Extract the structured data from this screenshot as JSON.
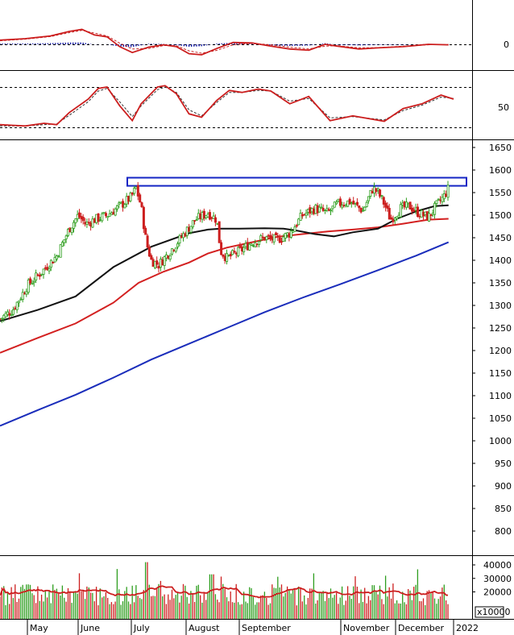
{
  "chart_data": {
    "type": "candlestick",
    "months": [
      "May",
      "June",
      "July",
      "August",
      "September",
      "November",
      "December",
      "2022"
    ],
    "price_axis": {
      "ticks": [
        "1650",
        "1600",
        "1550",
        "1500",
        "1450",
        "1400",
        "1350",
        "1300",
        "1250",
        "1200",
        "1150",
        "1100",
        "1050",
        "1000",
        "950",
        "900",
        "850",
        "800"
      ],
      "range": [
        750,
        1660
      ]
    },
    "macd_axis": {
      "ticks": [
        "0"
      ]
    },
    "stoch_axis": {
      "ticks": [
        "50"
      ],
      "upper_line": 80,
      "lower_line": 20
    },
    "volume_axis": {
      "ticks": [
        "40000",
        "30000",
        "20000"
      ],
      "multiplier_label": "x10000",
      "range": [
        0,
        45000
      ]
    },
    "resistance_zone": {
      "low": 1565,
      "high": 1583
    },
    "ma_short": [
      [
        0,
        1265
      ],
      [
        30,
        1290
      ],
      [
        60,
        1320
      ],
      [
        90,
        1385
      ],
      [
        120,
        1430
      ],
      [
        150,
        1460
      ],
      [
        165,
        1468
      ],
      [
        175,
        1470
      ],
      [
        190,
        1470
      ],
      [
        210,
        1471
      ],
      [
        225,
        1470
      ],
      [
        235,
        1466
      ],
      [
        250,
        1458
      ],
      [
        265,
        1453
      ],
      [
        280,
        1462
      ],
      [
        300,
        1470
      ],
      [
        315,
        1492
      ],
      [
        330,
        1508
      ],
      [
        345,
        1520
      ],
      [
        356,
        1522
      ]
    ],
    "ma_medium": [
      [
        0,
        1195
      ],
      [
        30,
        1228
      ],
      [
        60,
        1260
      ],
      [
        90,
        1306
      ],
      [
        110,
        1350
      ],
      [
        130,
        1375
      ],
      [
        150,
        1395
      ],
      [
        165,
        1415
      ],
      [
        180,
        1428
      ],
      [
        200,
        1440
      ],
      [
        220,
        1452
      ],
      [
        240,
        1458
      ],
      [
        260,
        1464
      ],
      [
        280,
        1468
      ],
      [
        300,
        1473
      ],
      [
        320,
        1481
      ],
      [
        340,
        1490
      ],
      [
        356,
        1492
      ]
    ],
    "ma_long": [
      [
        0,
        1033
      ],
      [
        30,
        1068
      ],
      [
        60,
        1102
      ],
      [
        90,
        1140
      ],
      [
        120,
        1180
      ],
      [
        150,
        1215
      ],
      [
        180,
        1250
      ],
      [
        210,
        1285
      ],
      [
        240,
        1317
      ],
      [
        270,
        1347
      ],
      [
        300,
        1378
      ],
      [
        330,
        1410
      ],
      [
        356,
        1440
      ]
    ],
    "stoch_k": [
      [
        0,
        24
      ],
      [
        10,
        23
      ],
      [
        20,
        22
      ],
      [
        35,
        26
      ],
      [
        45,
        24
      ],
      [
        55,
        42
      ],
      [
        70,
        62
      ],
      [
        78,
        78
      ],
      [
        85,
        80
      ],
      [
        95,
        52
      ],
      [
        105,
        30
      ],
      [
        112,
        55
      ],
      [
        125,
        80
      ],
      [
        131,
        82
      ],
      [
        140,
        70
      ],
      [
        150,
        40
      ],
      [
        160,
        35
      ],
      [
        172,
        60
      ],
      [
        182,
        75
      ],
      [
        192,
        72
      ],
      [
        205,
        77
      ],
      [
        215,
        74
      ],
      [
        230,
        55
      ],
      [
        245,
        66
      ],
      [
        262,
        30
      ],
      [
        280,
        37
      ],
      [
        305,
        29
      ],
      [
        320,
        48
      ],
      [
        335,
        55
      ],
      [
        350,
        68
      ],
      [
        360,
        62
      ]
    ],
    "stoch_d": [
      [
        0,
        22
      ],
      [
        10,
        22
      ],
      [
        20,
        22
      ],
      [
        35,
        24
      ],
      [
        45,
        25
      ],
      [
        55,
        38
      ],
      [
        70,
        58
      ],
      [
        78,
        74
      ],
      [
        85,
        78
      ],
      [
        95,
        58
      ],
      [
        105,
        36
      ],
      [
        112,
        52
      ],
      [
        125,
        76
      ],
      [
        131,
        80
      ],
      [
        140,
        72
      ],
      [
        150,
        46
      ],
      [
        160,
        37
      ],
      [
        172,
        57
      ],
      [
        182,
        72
      ],
      [
        192,
        72
      ],
      [
        205,
        75
      ],
      [
        215,
        74
      ],
      [
        230,
        59
      ],
      [
        245,
        63
      ],
      [
        262,
        34
      ],
      [
        280,
        36
      ],
      [
        305,
        31
      ],
      [
        320,
        45
      ],
      [
        335,
        53
      ],
      [
        350,
        65
      ],
      [
        360,
        63
      ]
    ],
    "macd_line": [
      [
        0,
        18
      ],
      [
        20,
        24
      ],
      [
        40,
        36
      ],
      [
        55,
        55
      ],
      [
        65,
        64
      ],
      [
        75,
        40
      ],
      [
        85,
        32
      ],
      [
        95,
        -10
      ],
      [
        105,
        -35
      ],
      [
        118,
        -12
      ],
      [
        130,
        -2
      ],
      [
        140,
        -10
      ],
      [
        150,
        -40
      ],
      [
        160,
        -45
      ],
      [
        172,
        -18
      ],
      [
        185,
        8
      ],
      [
        200,
        6
      ],
      [
        215,
        -8
      ],
      [
        230,
        -20
      ],
      [
        245,
        -25
      ],
      [
        258,
        0
      ],
      [
        268,
        -8
      ],
      [
        285,
        -20
      ],
      [
        300,
        -15
      ],
      [
        320,
        -10
      ],
      [
        340,
        0
      ],
      [
        356,
        -2
      ]
    ],
    "macd_signal": [
      [
        0,
        15
      ],
      [
        20,
        22
      ],
      [
        40,
        33
      ],
      [
        55,
        50
      ],
      [
        65,
        60
      ],
      [
        75,
        48
      ],
      [
        85,
        36
      ],
      [
        95,
        5
      ],
      [
        105,
        -20
      ],
      [
        118,
        -18
      ],
      [
        130,
        -5
      ],
      [
        140,
        -6
      ],
      [
        150,
        -28
      ],
      [
        160,
        -38
      ],
      [
        172,
        -26
      ],
      [
        185,
        -2
      ],
      [
        200,
        4
      ],
      [
        215,
        -2
      ],
      [
        230,
        -12
      ],
      [
        245,
        -20
      ],
      [
        258,
        -8
      ],
      [
        268,
        -6
      ],
      [
        285,
        -15
      ],
      [
        300,
        -14
      ],
      [
        320,
        -8
      ],
      [
        340,
        -2
      ],
      [
        356,
        -1
      ]
    ]
  }
}
